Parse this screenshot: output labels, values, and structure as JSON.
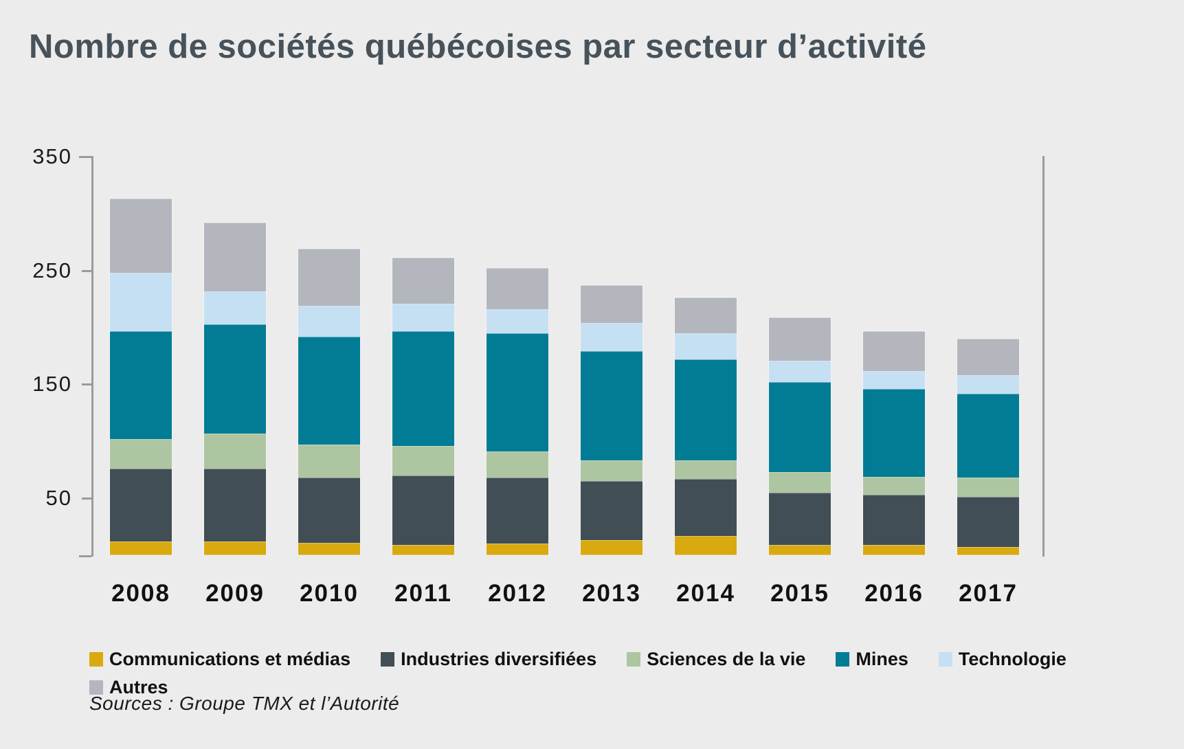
{
  "title": "Nombre de sociétés québécoises par secteur d’activité",
  "source": "Sources : Groupe TMX et l’Autorité",
  "colors": {
    "background": "#ececec",
    "title_text": "#47525a",
    "axis": "#9b9b9b",
    "label_text": "#111111"
  },
  "chart_data": {
    "type": "bar",
    "stacked": true,
    "title": "Nombre de sociétés québécoises par secteur d’activité",
    "categories": [
      "2008",
      "2009",
      "2010",
      "2011",
      "2012",
      "2013",
      "2014",
      "2015",
      "2016",
      "2017"
    ],
    "series": [
      {
        "name": "Communications et médias",
        "color": "#d8aa0f",
        "values": [
          12,
          12,
          11,
          9,
          10,
          13,
          17,
          9,
          9,
          7
        ]
      },
      {
        "name": "Industries diversifiées",
        "color": "#424e55",
        "values": [
          64,
          64,
          57,
          61,
          58,
          52,
          50,
          46,
          44,
          44
        ]
      },
      {
        "name": "Sciences de la vie",
        "color": "#aec5a1",
        "values": [
          26,
          31,
          29,
          26,
          23,
          18,
          16,
          18,
          16,
          17
        ]
      },
      {
        "name": "Mines",
        "color": "#027c95",
        "values": [
          95,
          96,
          95,
          101,
          104,
          96,
          89,
          79,
          77,
          74
        ]
      },
      {
        "name": "Technologie",
        "color": "#c5e0f3",
        "values": [
          51,
          29,
          27,
          24,
          21,
          25,
          23,
          19,
          16,
          16
        ]
      },
      {
        "name": "Autres",
        "color": "#b3b7bd",
        "values": [
          65,
          60,
          50,
          40,
          36,
          33,
          31,
          38,
          35,
          32
        ]
      }
    ],
    "totals": [
      313,
      292,
      269,
      261,
      252,
      237,
      226,
      209,
      197,
      190
    ],
    "xlabel": "",
    "ylabel": "",
    "ylim": [
      0,
      350
    ],
    "yticks": [
      50,
      150,
      250,
      350
    ],
    "grid": false,
    "legend_position": "bottom"
  }
}
